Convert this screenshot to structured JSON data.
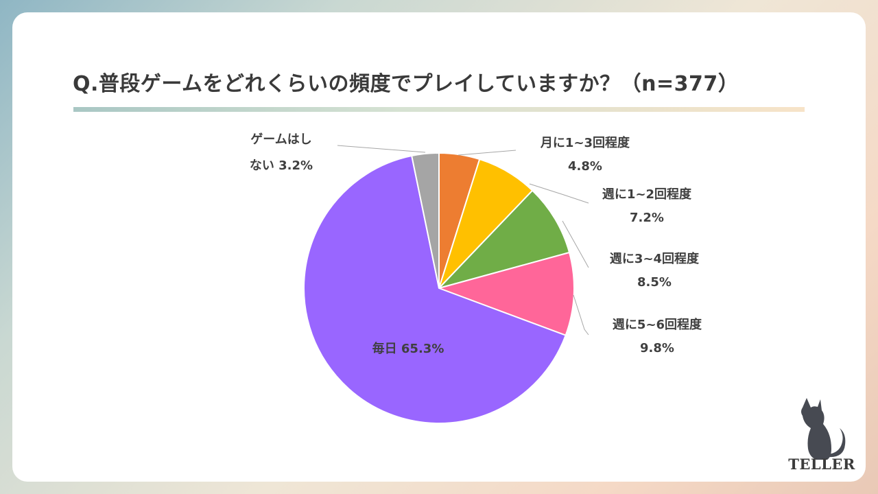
{
  "title": "Q.普段ゲームをどれくらいの頻度でプレイしていますか？（n=377）",
  "brand": "TELLER",
  "chart_data": {
    "type": "pie",
    "start_angle_deg": 0,
    "direction": "clockwise",
    "slices": [
      {
        "label": "月に1~3回程度",
        "value": 4.8,
        "value_text": "4.8%",
        "color": "#ED7D31"
      },
      {
        "label": "週に1~2回程度",
        "value": 7.2,
        "value_text": "7.2%",
        "color": "#FFC000"
      },
      {
        "label": "週に3~4回程度",
        "value": 8.5,
        "value_text": "8.5%",
        "color": "#70AD47"
      },
      {
        "label": "週に5~6回程度",
        "value": 9.8,
        "value_text": "9.8%",
        "color": "#FF6699"
      },
      {
        "label": "毎日",
        "value": 65.3,
        "value_text": "65.3%",
        "color": "#9966FF"
      },
      {
        "label": "ゲームはしない",
        "value": 3.2,
        "value_text": "3.2%",
        "color": "#A5A5A5"
      }
    ]
  }
}
